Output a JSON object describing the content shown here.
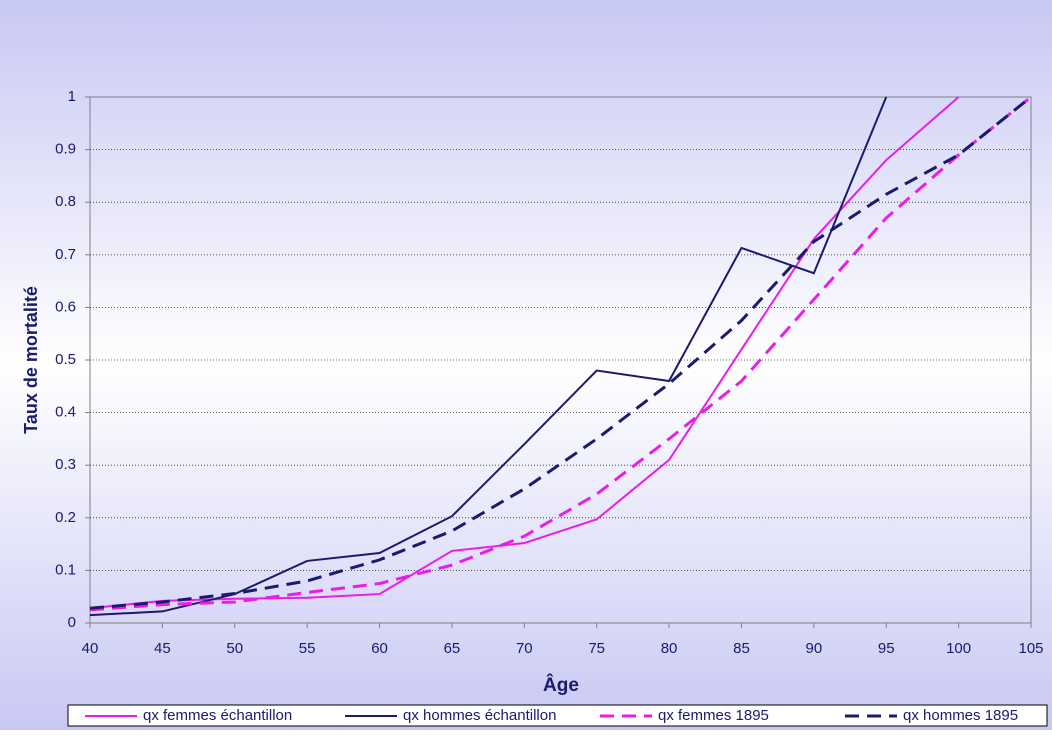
{
  "chart_data": {
    "type": "line",
    "x_label": "Âge",
    "y_label": "Taux de mortalité",
    "x": [
      40,
      45,
      50,
      55,
      60,
      65,
      70,
      75,
      80,
      85,
      90,
      95,
      100,
      105
    ],
    "xlim": [
      40,
      105
    ],
    "xticks": [
      40,
      45,
      50,
      55,
      60,
      65,
      70,
      75,
      80,
      85,
      90,
      95,
      100,
      105
    ],
    "ylim": [
      0,
      1
    ],
    "yticks": [
      0,
      0.1,
      0.2,
      0.3,
      0.4,
      0.5,
      0.6,
      0.7,
      0.8,
      0.9,
      1
    ],
    "grid": true,
    "legend": "bottom",
    "series": [
      {
        "name": "qx femmes échantillon",
        "color": "#e81ee8",
        "style": "solid",
        "values": [
          0.028,
          0.042,
          0.046,
          0.048,
          0.055,
          0.137,
          0.152,
          0.197,
          0.31,
          0.52,
          0.73,
          0.88,
          1.0,
          null
        ]
      },
      {
        "name": "qx hommes échantillon",
        "color": "#1a1a6e",
        "style": "solid",
        "values": [
          0.015,
          0.022,
          0.055,
          0.118,
          0.133,
          0.203,
          0.34,
          0.48,
          0.46,
          0.713,
          0.665,
          1.0,
          null,
          null
        ]
      },
      {
        "name": "qx femmes 1895",
        "color": "#e81ee8",
        "style": "dashed",
        "values": [
          0.025,
          0.035,
          0.04,
          0.058,
          0.075,
          0.11,
          0.165,
          0.245,
          0.35,
          0.46,
          0.615,
          0.77,
          0.89,
          1.0
        ]
      },
      {
        "name": "qx hommes 1895",
        "color": "#1a1a6e",
        "style": "dashed",
        "values": [
          0.028,
          0.04,
          0.056,
          0.08,
          0.12,
          0.175,
          0.255,
          0.35,
          0.455,
          0.575,
          0.725,
          0.815,
          0.89,
          1.0
        ]
      }
    ]
  }
}
